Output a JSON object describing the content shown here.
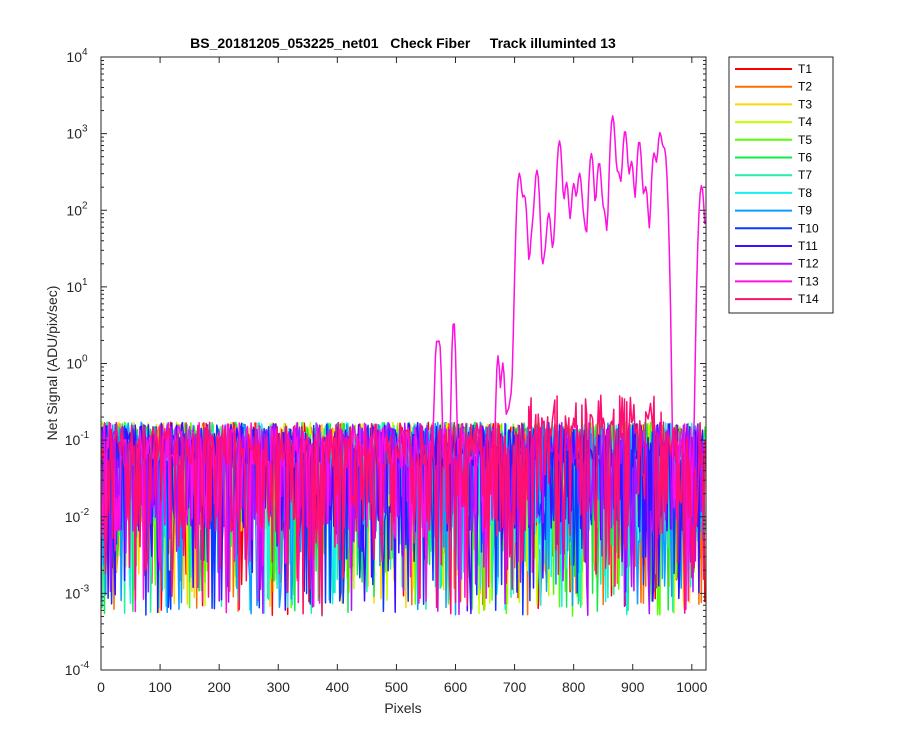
{
  "chart_data": {
    "type": "line",
    "title": "BS_20181205_053225_net01   Check Fiber     Track illuminted 13",
    "xlabel": "Pixels",
    "ylabel": "Net Signal (ADU/pix/sec)",
    "xlim": [
      0,
      1024
    ],
    "ylim": [
      0.0001,
      10000
    ],
    "yscale": "log",
    "x_ticks": [
      0,
      100,
      200,
      300,
      400,
      500,
      600,
      700,
      800,
      900,
      1000
    ],
    "y_ticks": [
      {
        "base": "10",
        "exp": "-4"
      },
      {
        "base": "10",
        "exp": "-3"
      },
      {
        "base": "10",
        "exp": "-2"
      },
      {
        "base": "10",
        "exp": "-1"
      },
      {
        "base": "10",
        "exp": "0"
      },
      {
        "base": "10",
        "exp": "1"
      },
      {
        "base": "10",
        "exp": "2"
      },
      {
        "base": "10",
        "exp": "3"
      },
      {
        "base": "10",
        "exp": "4"
      }
    ],
    "grid": false,
    "legend_position": "outside-right",
    "noise_baseline": 0.08,
    "illuminated_track": "T13",
    "series": [
      {
        "name": "T1",
        "color": "#ff0000"
      },
      {
        "name": "T2",
        "color": "#ff6f00"
      },
      {
        "name": "T3",
        "color": "#ffd600"
      },
      {
        "name": "T4",
        "color": "#c4ff00"
      },
      {
        "name": "T5",
        "color": "#54ff00"
      },
      {
        "name": "T6",
        "color": "#17e84a"
      },
      {
        "name": "T7",
        "color": "#1ff0a8"
      },
      {
        "name": "T8",
        "color": "#17f0f0"
      },
      {
        "name": "T9",
        "color": "#0f9bff"
      },
      {
        "name": "T10",
        "color": "#0d38ff"
      },
      {
        "name": "T11",
        "color": "#3b0fff"
      },
      {
        "name": "T12",
        "color": "#b10fff"
      },
      {
        "name": "T13",
        "color": "#ff0fe0"
      },
      {
        "name": "T14",
        "color": "#ff0f6f"
      }
    ],
    "t13_peaks": [
      {
        "x": 568,
        "y": 1.8
      },
      {
        "x": 573,
        "y": 1.8
      },
      {
        "x": 597,
        "y": 3.6
      },
      {
        "x": 672,
        "y": 1.2
      },
      {
        "x": 680,
        "y": 0.9
      },
      {
        "x": 708,
        "y": 300
      },
      {
        "x": 717,
        "y": 150
      },
      {
        "x": 730,
        "y": 50
      },
      {
        "x": 738,
        "y": 330
      },
      {
        "x": 750,
        "y": 20
      },
      {
        "x": 758,
        "y": 90
      },
      {
        "x": 768,
        "y": 35
      },
      {
        "x": 776,
        "y": 800
      },
      {
        "x": 788,
        "y": 230
      },
      {
        "x": 800,
        "y": 220
      },
      {
        "x": 810,
        "y": 300
      },
      {
        "x": 818,
        "y": 60
      },
      {
        "x": 830,
        "y": 550
      },
      {
        "x": 843,
        "y": 420
      },
      {
        "x": 852,
        "y": 90
      },
      {
        "x": 866,
        "y": 1700
      },
      {
        "x": 876,
        "y": 300
      },
      {
        "x": 887,
        "y": 1100
      },
      {
        "x": 898,
        "y": 430
      },
      {
        "x": 911,
        "y": 800
      },
      {
        "x": 922,
        "y": 200
      },
      {
        "x": 936,
        "y": 550
      },
      {
        "x": 946,
        "y": 1000
      },
      {
        "x": 954,
        "y": 600
      },
      {
        "x": 1016,
        "y": 190
      },
      {
        "x": 1020,
        "y": 40
      }
    ]
  }
}
